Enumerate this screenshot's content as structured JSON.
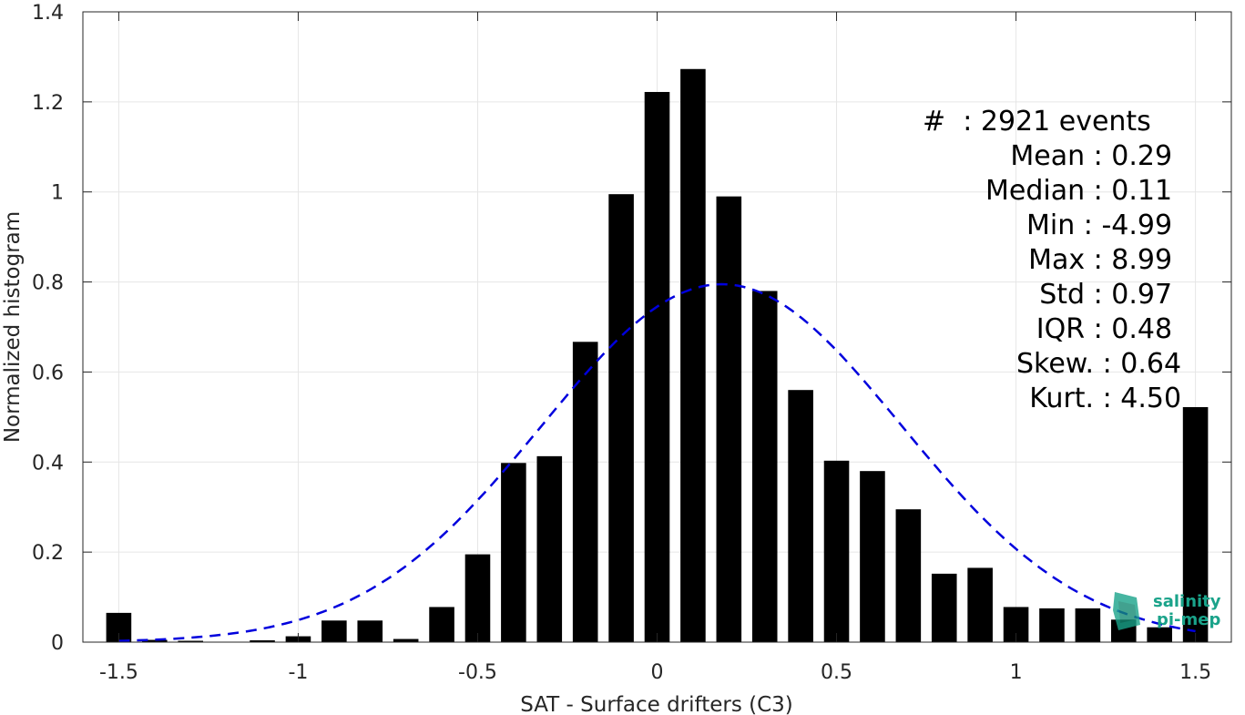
{
  "chart_data": {
    "type": "bar",
    "xlabel": "SAT - Surface drifters (C3)",
    "ylabel": "Normalized histogram",
    "xlim": [
      -1.6,
      1.6
    ],
    "ylim": [
      0,
      1.4
    ],
    "xticks": [
      -1.5,
      -1,
      -0.5,
      0,
      0.5,
      1,
      1.5
    ],
    "xtick_labels": [
      "-1.5",
      "-1",
      "-0.5",
      "0",
      "0.5",
      "1",
      "1.5"
    ],
    "yticks": [
      0,
      0.2,
      0.4,
      0.6,
      0.8,
      1,
      1.2,
      1.4
    ],
    "ytick_labels": [
      "0",
      "0.2",
      "0.4",
      "0.6",
      "0.8",
      "1",
      "1.2",
      "1.4"
    ],
    "grid": true,
    "bar_width": 0.07,
    "bars": {
      "x": [
        -1.5,
        -1.4,
        -1.3,
        -1.2,
        -1.1,
        -1.0,
        -0.9,
        -0.8,
        -0.7,
        -0.6,
        -0.5,
        -0.4,
        -0.3,
        -0.2,
        -0.1,
        0.0,
        0.1,
        0.2,
        0.3,
        0.4,
        0.5,
        0.6,
        0.7,
        0.8,
        0.9,
        1.0,
        1.1,
        1.2,
        1.3,
        1.4,
        1.5
      ],
      "values": [
        0.065,
        0.005,
        0.003,
        0.0,
        0.004,
        0.013,
        0.048,
        0.048,
        0.007,
        0.078,
        0.195,
        0.398,
        0.413,
        0.667,
        0.995,
        1.222,
        1.273,
        0.99,
        0.78,
        0.56,
        0.403,
        0.38,
        0.295,
        0.152,
        0.165,
        0.078,
        0.075,
        0.075,
        0.05,
        0.033,
        0.522
      ],
      "color": "#000000"
    },
    "fit": {
      "kind": "gaussian",
      "mean": 0.18,
      "std": 0.5,
      "peak": 0.795,
      "x_range": [
        -1.5,
        1.5
      ],
      "color": "#0000dd",
      "style": "dashed"
    },
    "stats_lines": [
      "#  : 2921 events",
      "Mean : 0.29",
      "Median : 0.11",
      "Min : -4.99",
      "Max : 8.99",
      "Std : 0.97",
      "IQR : 0.48",
      "Skew. : 0.64",
      "Kurt. : 4.50"
    ]
  },
  "logo": {
    "line1": "salinity",
    "line2": "pi-mep",
    "color": "#1aa38a"
  }
}
